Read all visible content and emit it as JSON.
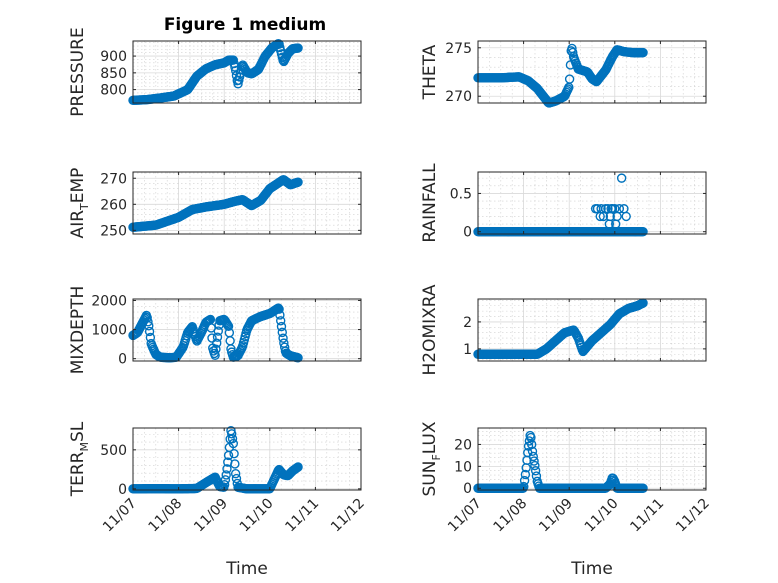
{
  "figure": {
    "title": "Figure 1 medium"
  },
  "chart_data": [
    {
      "type": "scatter",
      "id": "pressure",
      "ylabel": "PRESSURE",
      "ylabel_parts": [
        "PRESSURE"
      ],
      "xlabel": "",
      "xlim": [
        0,
        5
      ],
      "ylim": [
        760,
        945
      ],
      "yticks": [
        800,
        850,
        900
      ],
      "ytick_labels": [
        "800",
        "850",
        "900"
      ],
      "xticks": [
        0,
        1,
        2,
        3,
        4,
        5
      ],
      "xtick_labels": [
        "11/07",
        "11/08",
        "11/09",
        "11/10",
        "11/11",
        "11/12"
      ],
      "show_xtick_labels": false,
      "knots": [
        [
          0,
          768
        ],
        [
          0.3,
          770
        ],
        [
          0.6,
          775
        ],
        [
          0.9,
          781
        ],
        [
          1.2,
          800
        ],
        [
          1.4,
          840
        ],
        [
          1.6,
          862
        ],
        [
          1.8,
          874
        ],
        [
          2.0,
          880
        ],
        [
          2.1,
          888
        ],
        [
          2.2,
          888
        ],
        [
          2.25,
          858
        ],
        [
          2.3,
          815
        ],
        [
          2.4,
          875
        ],
        [
          2.5,
          851
        ],
        [
          2.6,
          847
        ],
        [
          2.75,
          860
        ],
        [
          2.9,
          900
        ],
        [
          3.05,
          925
        ],
        [
          3.2,
          938
        ],
        [
          3.3,
          882
        ],
        [
          3.4,
          908
        ],
        [
          3.5,
          922
        ],
        [
          3.62,
          924
        ]
      ],
      "n_points": 210
    },
    {
      "type": "scatter",
      "id": "theta",
      "ylabel": "THETA",
      "ylabel_parts": [
        "THETA"
      ],
      "xlabel": "",
      "xlim": [
        0,
        5
      ],
      "ylim": [
        269.3,
        275.7
      ],
      "yticks": [
        270,
        275
      ],
      "ytick_labels": [
        "270",
        "275"
      ],
      "xticks": [
        0,
        1,
        2,
        3,
        4,
        5
      ],
      "xtick_labels": [
        "11/07",
        "11/08",
        "11/09",
        "11/10",
        "11/11",
        "11/12"
      ],
      "show_xtick_labels": false,
      "knots": [
        [
          0,
          271.9
        ],
        [
          0.5,
          271.9
        ],
        [
          0.9,
          272.0
        ],
        [
          1.1,
          271.6
        ],
        [
          1.3,
          270.8
        ],
        [
          1.55,
          269.3
        ],
        [
          1.7,
          269.5
        ],
        [
          1.9,
          270.0
        ],
        [
          2.0,
          271.0
        ],
        [
          2.05,
          275.2
        ],
        [
          2.1,
          274.0
        ],
        [
          2.2,
          272.8
        ],
        [
          2.4,
          272.5
        ],
        [
          2.5,
          271.8
        ],
        [
          2.6,
          271.5
        ],
        [
          2.8,
          272.7
        ],
        [
          2.95,
          274.1
        ],
        [
          3.05,
          274.8
        ],
        [
          3.2,
          274.6
        ],
        [
          3.4,
          274.5
        ],
        [
          3.62,
          274.5
        ]
      ],
      "n_points": 210
    },
    {
      "type": "scatter",
      "id": "air_temp",
      "ylabel": "AIR_TEMP",
      "ylabel_parts": [
        "AIR",
        "T",
        "EMP"
      ],
      "xlabel": "",
      "xlim": [
        0,
        5
      ],
      "ylim": [
        248.6,
        272.4
      ],
      "yticks": [
        250,
        260,
        270
      ],
      "ytick_labels": [
        "250",
        "260",
        "270"
      ],
      "xticks": [
        0,
        1,
        2,
        3,
        4,
        5
      ],
      "xtick_labels": [
        "11/07",
        "11/08",
        "11/09",
        "11/10",
        "11/11",
        "11/12"
      ],
      "show_xtick_labels": false,
      "knots": [
        [
          0,
          251.2
        ],
        [
          0.5,
          252
        ],
        [
          1.0,
          255
        ],
        [
          1.3,
          258
        ],
        [
          1.6,
          259
        ],
        [
          2.0,
          260
        ],
        [
          2.2,
          261
        ],
        [
          2.4,
          261.8
        ],
        [
          2.6,
          259.5
        ],
        [
          2.8,
          261.5
        ],
        [
          3.0,
          266
        ],
        [
          3.3,
          269.5
        ],
        [
          3.45,
          267.5
        ],
        [
          3.62,
          268.5
        ]
      ],
      "n_points": 210
    },
    {
      "type": "scatter",
      "id": "rainfall",
      "ylabel": "RAINFALL",
      "ylabel_parts": [
        "RAINFALL"
      ],
      "xlabel": "",
      "xlim": [
        0,
        5
      ],
      "ylim": [
        -0.03,
        0.78
      ],
      "yticks": [
        0,
        0.5
      ],
      "ytick_labels": [
        "0",
        "0.5"
      ],
      "xticks": [
        0,
        1,
        2,
        3,
        4,
        5
      ],
      "xtick_labels": [
        "11/07",
        "11/08",
        "11/09",
        "11/10",
        "11/11",
        "11/12"
      ],
      "show_xtick_labels": false,
      "knots": [
        [
          0,
          0
        ],
        [
          3.62,
          0
        ]
      ],
      "n_points": 210,
      "extra_points": [
        [
          2.58,
          0.3
        ],
        [
          2.62,
          0.3
        ],
        [
          2.7,
          0.3
        ],
        [
          2.75,
          0.2
        ],
        [
          2.8,
          0.3
        ],
        [
          2.85,
          0.3
        ],
        [
          2.9,
          0.2
        ],
        [
          2.92,
          0.3
        ],
        [
          2.95,
          0.3
        ],
        [
          3.0,
          0.3
        ],
        [
          3.05,
          0.2
        ],
        [
          3.1,
          0.3
        ],
        [
          3.15,
          0.7
        ],
        [
          3.2,
          0.3
        ],
        [
          3.25,
          0.2
        ],
        [
          2.68,
          0.2
        ],
        [
          3.02,
          0.1
        ],
        [
          2.88,
          0.1
        ]
      ]
    },
    {
      "type": "scatter",
      "id": "mixdepth",
      "ylabel": "MIXDEPTH",
      "ylabel_parts": [
        "MIXDEPTH"
      ],
      "xlabel": "",
      "xlim": [
        0,
        5
      ],
      "ylim": [
        -80,
        2050
      ],
      "yticks": [
        0,
        1000,
        2000
      ],
      "ytick_labels": [
        "0",
        "1000",
        "2000"
      ],
      "xticks": [
        0,
        1,
        2,
        3,
        4,
        5
      ],
      "xtick_labels": [
        "11/07",
        "11/08",
        "11/09",
        "11/10",
        "11/11",
        "11/12"
      ],
      "show_xtick_labels": false,
      "knots": [
        [
          0,
          800
        ],
        [
          0.1,
          900
        ],
        [
          0.2,
          1200
        ],
        [
          0.3,
          1500
        ],
        [
          0.35,
          1100
        ],
        [
          0.4,
          500
        ],
        [
          0.5,
          150
        ],
        [
          0.6,
          50
        ],
        [
          0.8,
          30
        ],
        [
          0.95,
          50
        ],
        [
          1.1,
          400
        ],
        [
          1.2,
          900
        ],
        [
          1.3,
          1100
        ],
        [
          1.4,
          600
        ],
        [
          1.5,
          900
        ],
        [
          1.6,
          1250
        ],
        [
          1.7,
          1350
        ],
        [
          1.75,
          350
        ],
        [
          1.8,
          100
        ],
        [
          1.9,
          1300
        ],
        [
          2.0,
          1350
        ],
        [
          2.1,
          1100
        ],
        [
          2.15,
          300
        ],
        [
          2.2,
          50
        ],
        [
          2.3,
          100
        ],
        [
          2.4,
          400
        ],
        [
          2.5,
          1000
        ],
        [
          2.6,
          1300
        ],
        [
          2.8,
          1450
        ],
        [
          3.0,
          1550
        ],
        [
          3.2,
          1750
        ],
        [
          3.3,
          600
        ],
        [
          3.35,
          200
        ],
        [
          3.45,
          100
        ],
        [
          3.62,
          30
        ]
      ],
      "n_points": 210
    },
    {
      "type": "scatter",
      "id": "h2omixra",
      "ylabel": "H2OMIXRA",
      "ylabel_parts": [
        "H2OMIXRA"
      ],
      "xlabel": "",
      "xlim": [
        0,
        5
      ],
      "ylim": [
        0.55,
        2.85
      ],
      "yticks": [
        1,
        2
      ],
      "ytick_labels": [
        "1",
        "2"
      ],
      "xticks": [
        0,
        1,
        2,
        3,
        4,
        5
      ],
      "xtick_labels": [
        "11/07",
        "11/08",
        "11/09",
        "11/10",
        "11/11",
        "11/12"
      ],
      "show_xtick_labels": false,
      "knots": [
        [
          0,
          0.8
        ],
        [
          0.5,
          0.8
        ],
        [
          1.0,
          0.8
        ],
        [
          1.3,
          0.8
        ],
        [
          1.5,
          1.0
        ],
        [
          1.7,
          1.3
        ],
        [
          1.9,
          1.6
        ],
        [
          2.1,
          1.7
        ],
        [
          2.2,
          1.4
        ],
        [
          2.3,
          0.9
        ],
        [
          2.5,
          1.3
        ],
        [
          2.7,
          1.6
        ],
        [
          2.9,
          1.9
        ],
        [
          3.1,
          2.3
        ],
        [
          3.3,
          2.5
        ],
        [
          3.5,
          2.6
        ],
        [
          3.62,
          2.7
        ]
      ],
      "n_points": 210
    },
    {
      "type": "scatter",
      "id": "terr_msl",
      "ylabel": "TERR_MSL",
      "ylabel_parts": [
        "TERR",
        "M",
        "SL"
      ],
      "xlabel": "Time",
      "xlim": [
        0,
        5
      ],
      "ylim": [
        -15,
        780
      ],
      "yticks": [
        0,
        500
      ],
      "ytick_labels": [
        "0",
        "500"
      ],
      "xticks": [
        0,
        1,
        2,
        3,
        4,
        5
      ],
      "xtick_labels": [
        "11/07",
        "11/08",
        "11/09",
        "11/10",
        "11/11",
        "11/12"
      ],
      "show_xtick_labels": true,
      "knots": [
        [
          0,
          0
        ],
        [
          0.5,
          2
        ],
        [
          1.0,
          0
        ],
        [
          1.4,
          5
        ],
        [
          1.6,
          80
        ],
        [
          1.8,
          150
        ],
        [
          1.9,
          30
        ],
        [
          2.0,
          20
        ],
        [
          2.05,
          200
        ],
        [
          2.1,
          450
        ],
        [
          2.15,
          760
        ],
        [
          2.2,
          580
        ],
        [
          2.25,
          200
        ],
        [
          2.3,
          20
        ],
        [
          2.5,
          0
        ],
        [
          3.0,
          0
        ],
        [
          3.2,
          250
        ],
        [
          3.3,
          180
        ],
        [
          3.4,
          170
        ],
        [
          3.5,
          230
        ],
        [
          3.62,
          280
        ]
      ],
      "n_points": 210
    },
    {
      "type": "scatter",
      "id": "sun_flux",
      "ylabel": "SUN_FLUX",
      "ylabel_parts": [
        "SUN",
        "F",
        "LUX"
      ],
      "xlabel": "Time",
      "xlim": [
        0,
        5
      ],
      "ylim": [
        -0.8,
        27.5
      ],
      "yticks": [
        0,
        10,
        20
      ],
      "ytick_labels": [
        "0",
        "10",
        "20"
      ],
      "xticks": [
        0,
        1,
        2,
        3,
        4,
        5
      ],
      "xtick_labels": [
        "11/07",
        "11/08",
        "11/09",
        "11/10",
        "11/11",
        "11/12"
      ],
      "show_xtick_labels": true,
      "knots": [
        [
          0,
          0
        ],
        [
          0.9,
          0
        ],
        [
          1.0,
          0
        ],
        [
          1.05,
          8
        ],
        [
          1.1,
          18
        ],
        [
          1.15,
          25
        ],
        [
          1.2,
          16
        ],
        [
          1.25,
          10
        ],
        [
          1.3,
          3
        ],
        [
          1.35,
          0
        ],
        [
          2.0,
          0
        ],
        [
          2.5,
          0
        ],
        [
          2.8,
          0
        ],
        [
          2.9,
          2
        ],
        [
          2.95,
          5
        ],
        [
          3.0,
          3
        ],
        [
          3.05,
          0
        ],
        [
          3.62,
          0
        ]
      ],
      "n_points": 210
    }
  ]
}
